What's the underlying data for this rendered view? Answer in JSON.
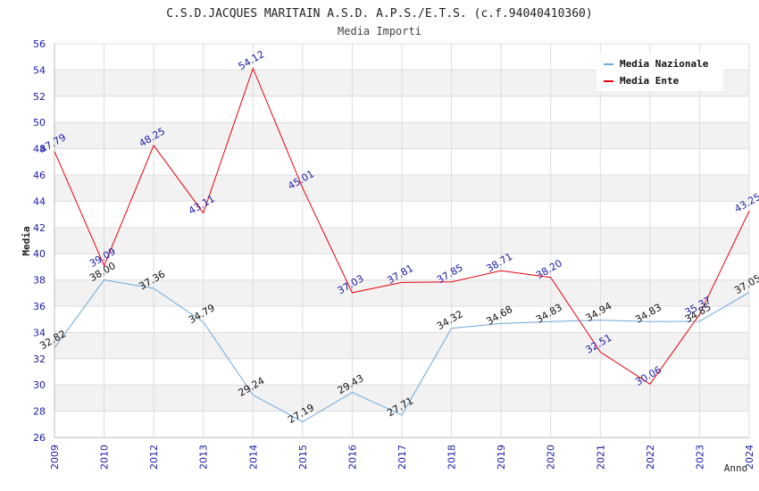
{
  "chart_data": {
    "type": "line",
    "title": "C.S.D.JACQUES MARITAIN A.S.D. A.P.S./E.T.S. (c.f.94040410360)",
    "subtitle": "Media Importi",
    "xlabel": "Anno",
    "ylabel": "Media",
    "ylim": [
      26,
      56
    ],
    "yticks": [
      26,
      28,
      30,
      32,
      34,
      36,
      38,
      40,
      42,
      44,
      46,
      48,
      50,
      52,
      54,
      56
    ],
    "categories": [
      "2009",
      "2010",
      "2012",
      "2013",
      "2014",
      "2015",
      "2016",
      "2017",
      "2018",
      "2019",
      "2020",
      "2021",
      "2022",
      "2023",
      "2024"
    ],
    "legend_position": "top-right",
    "series": [
      {
        "name": "Media Nazionale",
        "color": "#6fa8dc",
        "label_color": "#111111",
        "values": [
          32.82,
          38.0,
          37.36,
          34.79,
          29.24,
          27.19,
          29.43,
          27.71,
          34.32,
          34.68,
          34.83,
          34.94,
          34.83,
          34.85,
          37.05
        ],
        "labels": [
          "32.82",
          "38.00",
          "37.36",
          "34.79",
          "29.24",
          "27.19",
          "29.43",
          "27.71",
          "34.32",
          "34.68",
          "34.83",
          "34.94",
          "34.83",
          "34.85",
          "37.05"
        ]
      },
      {
        "name": "Media Ente",
        "color": "#e8000b",
        "label_color": "#1a1aa8",
        "values": [
          47.79,
          39.09,
          48.25,
          43.11,
          54.12,
          45.01,
          37.03,
          37.81,
          37.85,
          38.71,
          38.2,
          32.51,
          30.06,
          35.37,
          43.25
        ],
        "labels": [
          "47.79",
          "39.09",
          "48.25",
          "43.11",
          "54.12",
          "45.01",
          "37.03",
          "37.81",
          "37.85",
          "38.71",
          "38.20",
          "32.51",
          "30.06",
          "35.37",
          "43.25"
        ]
      }
    ]
  }
}
